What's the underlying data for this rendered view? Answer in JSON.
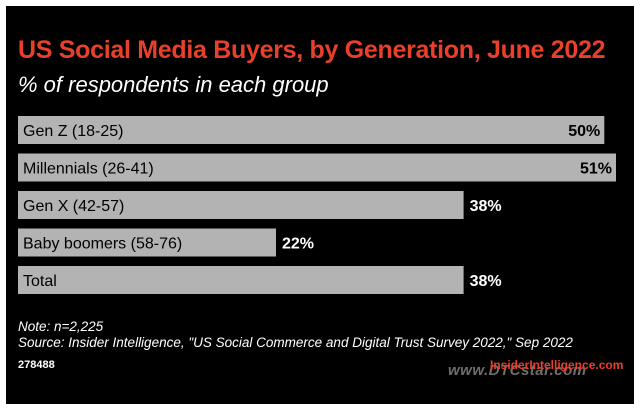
{
  "chart_data": {
    "type": "bar",
    "orientation": "horizontal",
    "title": "US Social Media Buyers, by Generation, June 2022",
    "subtitle": "% of respondents in each group",
    "categories": [
      "Gen Z (18-25)",
      "Millennials (26-41)",
      "Gen X (42-57)",
      "Baby boomers (58-76)",
      "Total"
    ],
    "values": [
      50,
      51,
      38,
      22,
      38
    ],
    "value_labels": [
      "50%",
      "51%",
      "38%",
      "22%",
      "38%"
    ],
    "xlim": [
      0,
      51
    ],
    "grid": false,
    "bar_color": "#b3b3b3",
    "background": "#000000",
    "title_color": "#e8402a"
  },
  "footer": {
    "note": "Note: n=2,225",
    "source": "Source: Insider Intelligence, \"US Social Commerce and Digital Trust Survey 2022,\" Sep 2022",
    "chart_id": "278488",
    "logo": "InsiderIntelligence.com",
    "watermark": "www.DTCstar.com"
  }
}
